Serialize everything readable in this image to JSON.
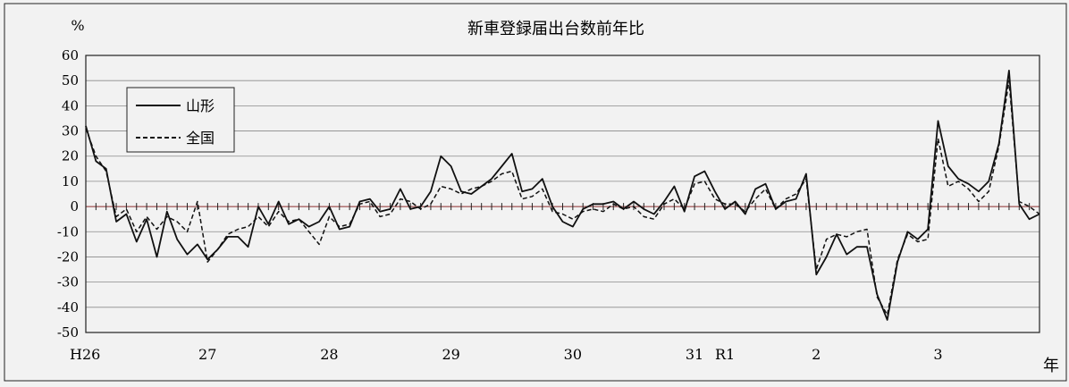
{
  "chart_data": {
    "type": "line",
    "title": "新車登録届出台数前年比",
    "ylabel": "%",
    "xlabel": "年",
    "ylim": [
      -50,
      60
    ],
    "y_ticks": [
      60,
      50,
      40,
      30,
      20,
      10,
      0,
      -10,
      -20,
      -30,
      -40,
      -50
    ],
    "grid": true,
    "legend_position": "top-left",
    "x_tick_labels": [
      "H26",
      "27",
      "28",
      "29",
      "30",
      "31",
      "R1",
      "2",
      "3"
    ],
    "x_tick_label_index": [
      0,
      12,
      24,
      36,
      48,
      60,
      63,
      72,
      84
    ],
    "series": [
      {
        "name": "山形",
        "style": "solid",
        "values": [
          32,
          18,
          15,
          -6,
          -3,
          -14,
          -5,
          -20,
          -2,
          -13,
          -19,
          -15,
          -21,
          -17,
          -12,
          -12,
          -16,
          0,
          -7,
          2,
          -7,
          -5,
          -8,
          -6,
          0,
          -9,
          -8,
          2,
          3,
          -2,
          -1,
          7,
          -1,
          0,
          6,
          20,
          16,
          6,
          5,
          8,
          11,
          16,
          21,
          6,
          7,
          11,
          0,
          -6,
          -8,
          -1,
          1,
          1,
          2,
          -1,
          2,
          -1,
          -3,
          2,
          8,
          -2,
          12,
          14,
          6,
          -1,
          2,
          -3,
          7,
          9,
          -1,
          2,
          3,
          13,
          -27,
          -20,
          -11,
          -19,
          -16,
          -16,
          -35,
          -45,
          -22,
          -10,
          -13,
          -9,
          34,
          16,
          11,
          9,
          6,
          10,
          25,
          54,
          1,
          -5,
          -3
        ]
      },
      {
        "name": "全国",
        "style": "dashed",
        "values": [
          31,
          20,
          14,
          -4,
          -1,
          -10,
          -4,
          -9,
          -4,
          -6,
          -10,
          2,
          -22,
          -17,
          -11,
          -9,
          -8,
          -4,
          -8,
          -2,
          -6,
          -5,
          -10,
          -15,
          -4,
          -8,
          -7,
          1,
          2,
          -4,
          -3,
          3,
          2,
          -1,
          1,
          8,
          7,
          5,
          7,
          8,
          10,
          13,
          14,
          3,
          4,
          7,
          -2,
          -3,
          -5,
          -2,
          -1,
          -2,
          1,
          -1,
          0,
          -4,
          -5,
          1,
          3,
          -1,
          9,
          10,
          3,
          1,
          1,
          -2,
          3,
          7,
          -1,
          3,
          5,
          11,
          -25,
          -13,
          -11,
          -12,
          -10,
          -9,
          -36,
          -43,
          -21,
          -11,
          -14,
          -13,
          27,
          8,
          10,
          7,
          2,
          6,
          24,
          50,
          2,
          0,
          -3
        ]
      }
    ]
  }
}
